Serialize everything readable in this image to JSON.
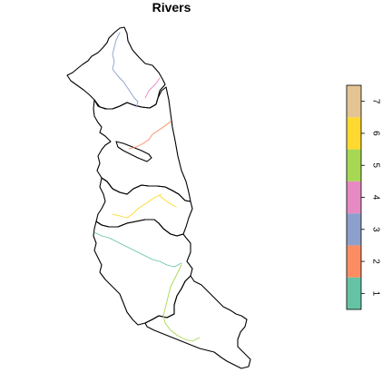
{
  "title": "Rivers",
  "legend": {
    "type": "color-ramp",
    "placement": "right",
    "entries": [
      {
        "value": 1,
        "label": "1",
        "color": "#66c2a5"
      },
      {
        "value": 2,
        "label": "2",
        "color": "#fc8d62"
      },
      {
        "value": 3,
        "label": "3",
        "color": "#8da0cb"
      },
      {
        "value": 4,
        "label": "4",
        "color": "#e78ac3"
      },
      {
        "value": 5,
        "label": "5",
        "color": "#a6d854"
      },
      {
        "value": 6,
        "label": "6",
        "color": "#ffd92f"
      },
      {
        "value": 7,
        "label": "7",
        "color": "#e5c494"
      }
    ]
  },
  "outline_color": "#000000"
}
